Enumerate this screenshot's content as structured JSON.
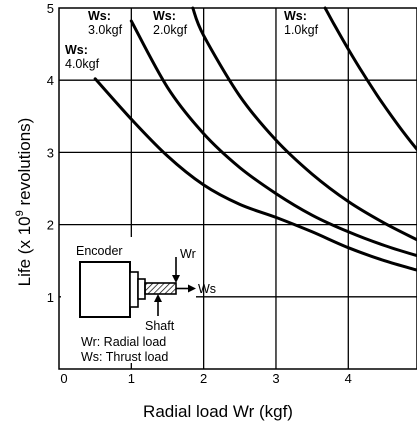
{
  "chart_data": {
    "type": "line",
    "title": "",
    "xlabel": "Radial load Wr (kgf)",
    "ylabel_prefix": "Life (x 10",
    "ylabel_exp": "9",
    "ylabel_suffix": " revolutions)",
    "xlim": [
      0,
      4.95
    ],
    "ylim": [
      0,
      5
    ],
    "xticks": [
      "0",
      "1",
      "2",
      "3",
      "4"
    ],
    "yticks": [
      "1",
      "2",
      "3",
      "4",
      "5"
    ],
    "grid": true,
    "legend": "none",
    "series": [
      {
        "name_line": "Ws:",
        "value_line": "1.0kgf",
        "x": [
          3.68,
          3.8,
          4.0,
          4.2,
          4.4,
          4.6,
          4.8,
          4.95
        ],
        "y": [
          5.0,
          4.78,
          4.43,
          4.1,
          3.79,
          3.5,
          3.23,
          3.04
        ]
      },
      {
        "name_line": "Ws:",
        "value_line": "2.0kgf",
        "x": [
          1.85,
          2.0,
          2.5,
          3.0,
          3.5,
          4.0,
          4.5,
          4.95
        ],
        "y": [
          5.0,
          4.62,
          3.78,
          3.17,
          2.7,
          2.32,
          2.02,
          1.79
        ]
      },
      {
        "name_line": "Ws:",
        "value_line": "3.0kgf",
        "x": [
          1.0,
          1.5,
          2.0,
          2.5,
          3.0,
          3.5,
          4.0,
          4.5,
          4.95
        ],
        "y": [
          4.82,
          3.9,
          3.26,
          2.79,
          2.43,
          2.13,
          1.9,
          1.71,
          1.57
        ]
      },
      {
        "name_line": "Ws:",
        "value_line": "4.0kgf",
        "x": [
          0.5,
          1.0,
          1.5,
          2.0,
          2.5,
          3.0,
          3.5,
          4.0,
          4.5,
          4.95
        ],
        "y": [
          4.02,
          3.46,
          2.95,
          2.55,
          2.28,
          2.1,
          1.9,
          1.68,
          1.5,
          1.37
        ]
      }
    ],
    "colors": {
      "line": "#000000",
      "grid": "#000000",
      "background": "#ffffff"
    }
  },
  "inset": {
    "encoder_label": "Encoder",
    "wr_label": "Wr",
    "ws_label": "Ws",
    "shaft_label": "Shaft",
    "legend_wr": "Wr:  Radial load",
    "legend_ws": "Ws: Thrust load"
  }
}
